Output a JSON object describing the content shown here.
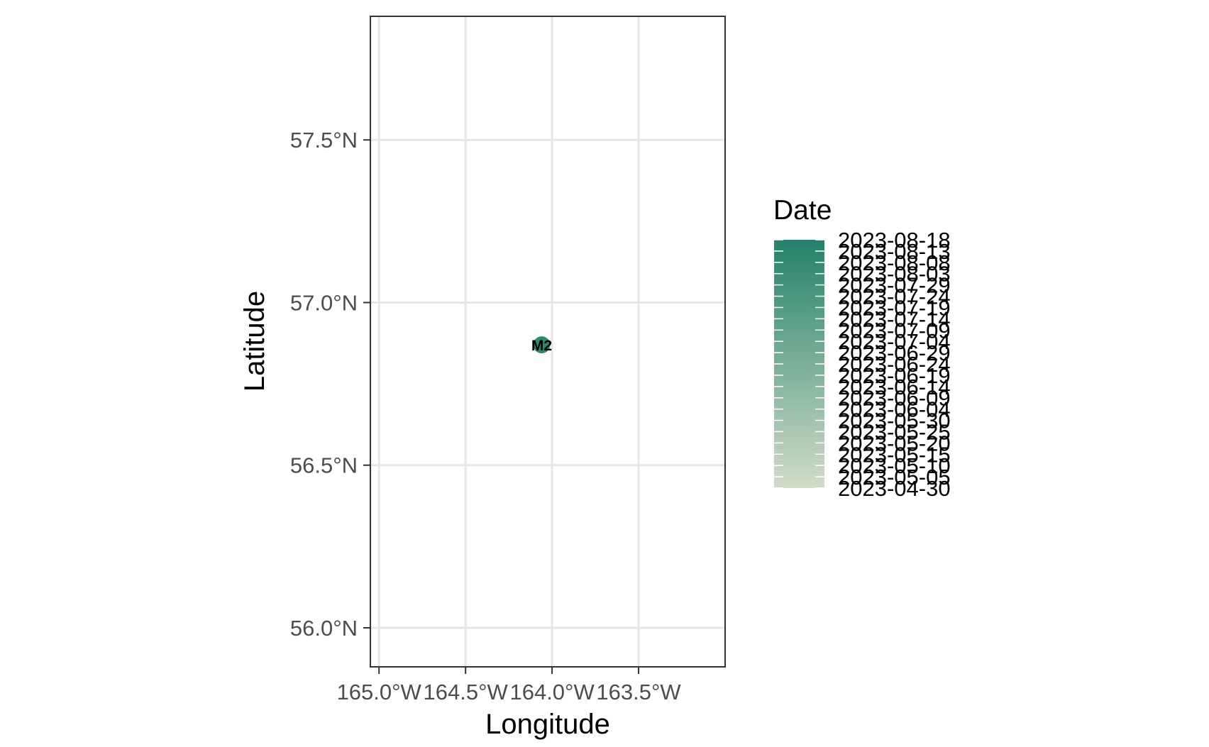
{
  "chart_data": {
    "type": "scatter",
    "xlabel": "Longitude",
    "ylabel": "Latitude",
    "xlim": [
      -165.05,
      -163.0
    ],
    "ylim": [
      55.88,
      57.88
    ],
    "x_ticks": [
      -165.0,
      -164.5,
      -164.0,
      -163.5
    ],
    "x_tick_labels": [
      "165.0°W",
      "164.5°W",
      "164.0°W",
      "163.5°W"
    ],
    "y_ticks": [
      56.0,
      56.5,
      57.0,
      57.5
    ],
    "y_tick_labels": [
      "56.0°N",
      "56.5°N",
      "57.0°N",
      "57.5°N"
    ],
    "grid": true,
    "points": [
      {
        "x": -164.06,
        "y": 56.87,
        "label": "M2",
        "color": "#2a8a70"
      }
    ],
    "legend": {
      "title": "Date",
      "placement": "right",
      "color_low": "#d2dcc8",
      "color_high": "#23826a",
      "labels": [
        "2023-04-30",
        "2023-05-05",
        "2023-05-10",
        "2023-05-15",
        "2023-05-20",
        "2023-05-25",
        "2023-05-30",
        "2023-06-04",
        "2023-06-09",
        "2023-06-14",
        "2023-06-19",
        "2023-06-24",
        "2023-06-29",
        "2023-07-04",
        "2023-07-09",
        "2023-07-14",
        "2023-07-19",
        "2023-07-24",
        "2023-07-29",
        "2023-08-03",
        "2023-08-08",
        "2023-08-13",
        "2023-08-18"
      ]
    }
  }
}
